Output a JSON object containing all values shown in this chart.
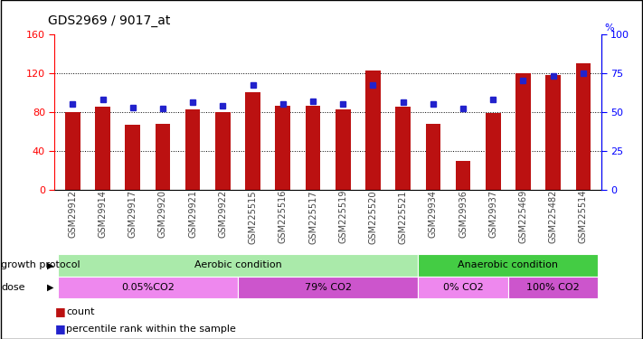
{
  "title": "GDS2969 / 9017_at",
  "samples": [
    "GSM29912",
    "GSM29914",
    "GSM29917",
    "GSM29920",
    "GSM29921",
    "GSM29922",
    "GSM225515",
    "GSM225516",
    "GSM225517",
    "GSM225519",
    "GSM225520",
    "GSM225521",
    "GSM29934",
    "GSM29936",
    "GSM29937",
    "GSM225469",
    "GSM225482",
    "GSM225514"
  ],
  "counts": [
    80,
    85,
    67,
    68,
    83,
    80,
    100,
    86,
    86,
    83,
    122,
    85,
    68,
    30,
    79,
    120,
    118,
    130
  ],
  "percentiles": [
    55,
    58,
    53,
    52,
    56,
    54,
    67,
    55,
    57,
    55,
    67,
    56,
    55,
    52,
    58,
    70,
    73,
    75
  ],
  "ylim_left": [
    0,
    160
  ],
  "ylim_right": [
    0,
    100
  ],
  "yticks_left": [
    0,
    40,
    80,
    120,
    160
  ],
  "yticks_right": [
    0,
    25,
    50,
    75,
    100
  ],
  "bar_color": "#bb1111",
  "dot_color": "#2222cc",
  "growth_protocol_label": "growth protocol",
  "dose_label": "dose",
  "growth_groups": [
    {
      "label": "Aerobic condition",
      "start": 0,
      "end": 11,
      "color": "#aaeaaa"
    },
    {
      "label": "Anaerobic condition",
      "start": 12,
      "end": 17,
      "color": "#44cc44"
    }
  ],
  "dose_groups": [
    {
      "label": "0.05%CO2",
      "start": 0,
      "end": 5,
      "color": "#ee88ee"
    },
    {
      "label": "79% CO2",
      "start": 6,
      "end": 11,
      "color": "#cc55cc"
    },
    {
      "label": "0% CO2",
      "start": 12,
      "end": 14,
      "color": "#ee88ee"
    },
    {
      "label": "100% CO2",
      "start": 15,
      "end": 17,
      "color": "#cc55cc"
    }
  ],
  "legend_count_label": "count",
  "legend_pct_label": "percentile rank within the sample",
  "bar_width": 0.5
}
